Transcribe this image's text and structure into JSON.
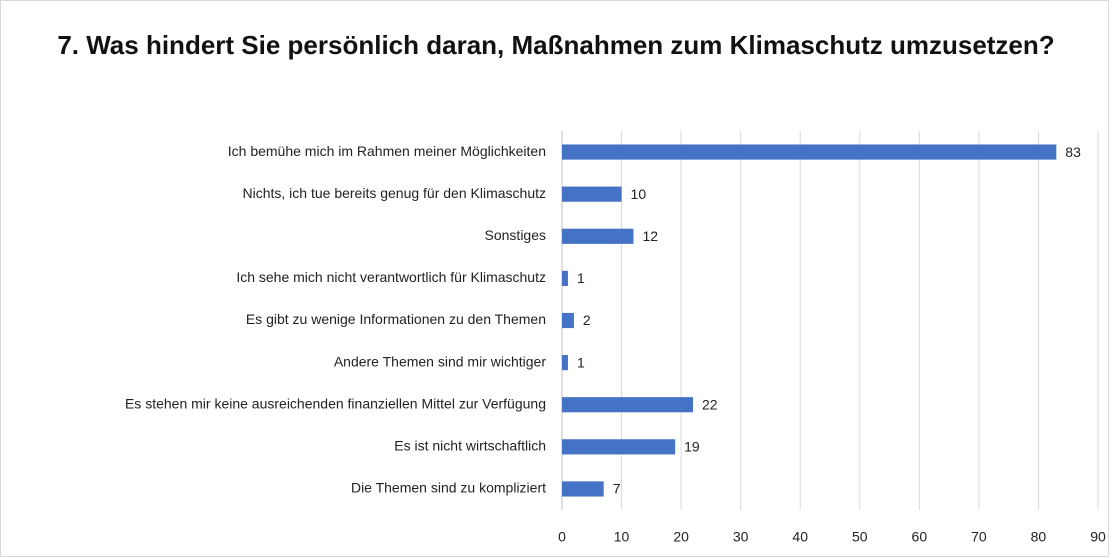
{
  "chart_data": {
    "type": "barh",
    "title": "7. Was hindert Sie persönlich daran, Maßnahmen zum Klimaschutz umzusetzen?",
    "categories": [
      "Ich bemühe mich im Rahmen meiner Möglichkeiten",
      "Nichts, ich tue bereits genug für den Klimaschutz",
      "Sonstiges",
      "Ich sehe mich nicht verantwortlich für Klimaschutz",
      "Es gibt zu wenige Informationen zu den Themen",
      "Andere Themen sind mir wichtiger",
      "Es stehen mir keine ausreichenden finanziellen Mittel zur Verfügung",
      "Es ist nicht wirtschaftlich",
      "Die Themen sind zu kompliziert"
    ],
    "values": [
      83,
      10,
      12,
      1,
      2,
      1,
      22,
      19,
      7
    ],
    "color": "#4472c4",
    "xlim": [
      0,
      90
    ],
    "xticks": [
      0,
      10,
      20,
      30,
      40,
      50,
      60,
      70,
      80,
      90
    ],
    "grid": true
  }
}
